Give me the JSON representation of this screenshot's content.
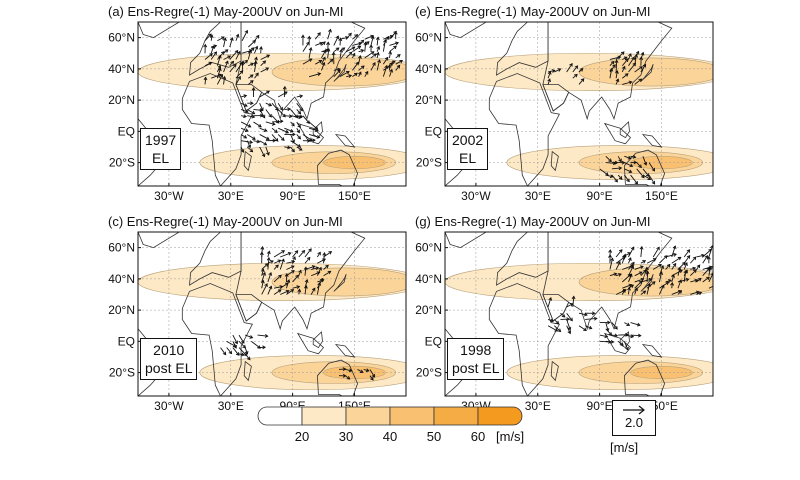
{
  "panels": [
    {
      "title": "(a) Ens-Regre(-1) May-200UV on Jun-MI",
      "case_line1": "1997",
      "case_line2": "EL",
      "wind_seed": 11
    },
    {
      "title": "(e) Ens-Regre(-1) May-200UV on Jun-MI",
      "case_line1": "2002",
      "case_line2": "EL",
      "wind_seed": 23
    },
    {
      "title": "(c) Ens-Regre(-1) May-200UV on Jun-MI",
      "case_line1": "2010",
      "case_line2": "post EL",
      "wind_seed": 37
    },
    {
      "title": "(g) Ens-Regre(-1) May-200UV on Jun-MI",
      "case_line1": "1998",
      "case_line2": "post EL",
      "wind_seed": 51
    }
  ],
  "lat_labels": [
    "60°N",
    "40°N",
    "20°N",
    "EQ",
    "20°S"
  ],
  "lon_labels": [
    "30°W",
    "30°E",
    "90°E",
    "150°E"
  ],
  "colorbar": {
    "ticks": [
      "20",
      "30",
      "40",
      "50",
      "60"
    ],
    "unit": "[m/s]",
    "colors": [
      "#ffffff",
      "#fde9c6",
      "#fbd49a",
      "#f8c070",
      "#f6ac45",
      "#f39a1f"
    ]
  },
  "reference_vector": {
    "value": "2.0",
    "unit": "[m/s]"
  }
}
